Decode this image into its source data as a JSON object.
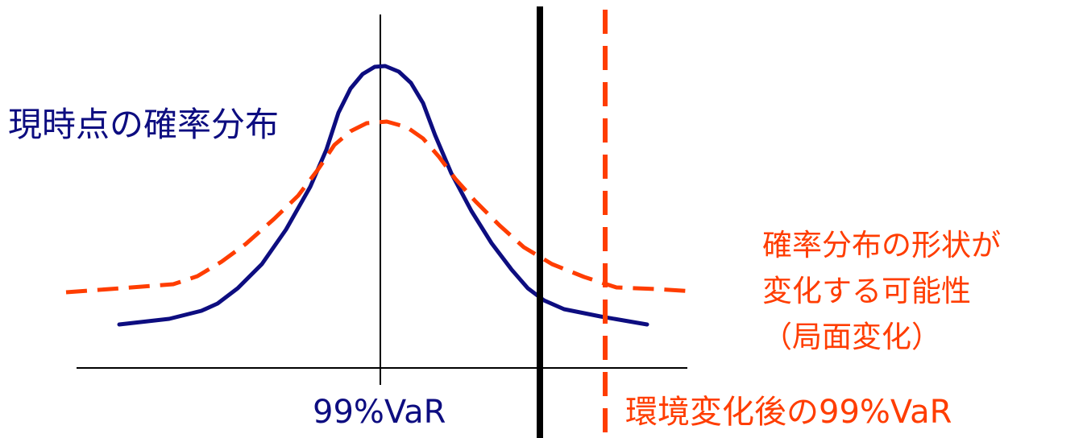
{
  "colors": {
    "current_curve": "#0d0d80",
    "changed_curve": "#ff3d00",
    "axis": "#000000",
    "var_line": "#000000",
    "var_after_line": "#ff3d00"
  },
  "labels": {
    "current_distribution": "現時点の確率分布",
    "shape_change_line1": "確率分布の形状が",
    "shape_change_line2": "変化する可能性",
    "shape_change_line3": "（局面変化）",
    "var99": "99%VaR",
    "var99_after_change": "環境変化後の99%VaR"
  }
}
